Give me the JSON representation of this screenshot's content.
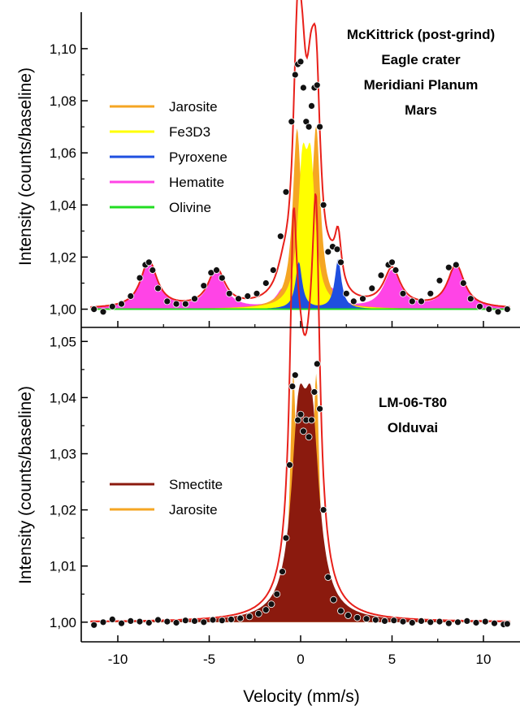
{
  "chart_data": [
    {
      "type": "area",
      "panel": "top",
      "title": "",
      "annotation": [
        "McKittrick (post-grind)",
        "Eagle crater",
        "Meridiani Planum",
        "Mars"
      ],
      "xlabel": "",
      "ylabel": "Intensity (counts/baseline)",
      "xlim": [
        -12,
        12
      ],
      "ylim": [
        0.993,
        1.114
      ],
      "xticks": [
        -10,
        -5,
        0,
        5,
        10
      ],
      "yticks": [
        1.0,
        1.02,
        1.04,
        1.06,
        1.08,
        1.1
      ],
      "ytick_labels": [
        "1,00",
        "1,02",
        "1,04",
        "1,06",
        "1,08",
        "1,10"
      ],
      "grid": false,
      "legend_position": "upper-left",
      "legend": [
        {
          "name": "Jarosite",
          "color": "#f5a623"
        },
        {
          "name": "Fe3D3",
          "color": "#ffff00"
        },
        {
          "name": "Pyroxene",
          "color": "#1f4fe0"
        },
        {
          "name": "Hematite",
          "color": "#ff44e6"
        },
        {
          "name": "Olivine",
          "color": "#22dd22"
        }
      ],
      "components": [
        {
          "name": "Hematite",
          "color": "#ff44e6",
          "peaks": [
            [
              -8.3,
              0.018,
              0.55
            ],
            [
              -4.6,
              0.0145,
              0.55
            ],
            [
              -0.95,
              0.0075,
              0.45
            ],
            [
              1.65,
              0.0075,
              0.45
            ],
            [
              5.0,
              0.0145,
              0.55
            ],
            [
              8.5,
              0.0165,
              0.55
            ]
          ]
        },
        {
          "name": "Jarosite",
          "color": "#f5a623",
          "peaks": [
            [
              -0.2,
              0.065,
              0.28
            ],
            [
              0.85,
              0.066,
              0.28
            ]
          ]
        },
        {
          "name": "Fe3D3",
          "color": "#ffff00",
          "peaks": [
            [
              0.1,
              0.048,
              0.3
            ],
            [
              0.55,
              0.048,
              0.3
            ]
          ]
        },
        {
          "name": "Pyroxene",
          "color": "#1f4fe0",
          "peaks": [
            [
              -0.1,
              0.018,
              0.22
            ],
            [
              2.05,
              0.019,
              0.22
            ]
          ]
        },
        {
          "name": "Olivine",
          "color": "#22dd22",
          "peaks": []
        }
      ],
      "data_points_x": [
        -11.3,
        -10.8,
        -10.3,
        -9.8,
        -9.3,
        -8.8,
        -8.5,
        -8.3,
        -8.1,
        -7.8,
        -7.3,
        -6.8,
        -6.3,
        -5.8,
        -5.3,
        -4.9,
        -4.6,
        -4.3,
        -3.9,
        -3.4,
        -2.9,
        -2.4,
        -1.9,
        -1.5,
        -1.1,
        -0.8,
        -0.5,
        -0.3,
        -0.15,
        0.0,
        0.15,
        0.3,
        0.45,
        0.6,
        0.75,
        0.9,
        1.05,
        1.25,
        1.5,
        1.75,
        2.0,
        2.2,
        2.5,
        2.9,
        3.4,
        3.9,
        4.4,
        4.8,
        5.0,
        5.2,
        5.6,
        6.1,
        6.6,
        7.1,
        7.6,
        8.1,
        8.5,
        8.9,
        9.3,
        9.8,
        10.3,
        10.8,
        11.3
      ],
      "data_points_y": [
        1.0,
        0.999,
        1.001,
        1.002,
        1.005,
        1.012,
        1.017,
        1.018,
        1.015,
        1.008,
        1.003,
        1.002,
        1.002,
        1.004,
        1.009,
        1.014,
        1.015,
        1.012,
        1.006,
        1.004,
        1.005,
        1.006,
        1.01,
        1.015,
        1.028,
        1.045,
        1.072,
        1.09,
        1.094,
        1.095,
        1.085,
        1.072,
        1.07,
        1.078,
        1.085,
        1.086,
        1.07,
        1.04,
        1.022,
        1.024,
        1.023,
        1.018,
        1.006,
        1.003,
        1.004,
        1.008,
        1.013,
        1.017,
        1.018,
        1.015,
        1.006,
        1.003,
        1.003,
        1.006,
        1.011,
        1.016,
        1.017,
        1.01,
        1.004,
        1.001,
        1.0,
        0.999,
        1.0
      ]
    },
    {
      "type": "area",
      "panel": "bottom",
      "title": "",
      "annotation": [
        "LM-06-T80",
        "Olduvai"
      ],
      "xlabel": "Velocity (mm/s)",
      "ylabel": "Intensity (counts/baseline)",
      "xlim": [
        -12,
        12
      ],
      "ylim": [
        0.9965,
        1.0525
      ],
      "xticks": [
        -10,
        -5,
        0,
        5,
        10
      ],
      "xtick_labels": [
        "-10",
        "-5",
        "0",
        "5",
        "10"
      ],
      "yticks": [
        1.0,
        1.01,
        1.02,
        1.03,
        1.04,
        1.05
      ],
      "ytick_labels": [
        "1,00",
        "1,01",
        "1,02",
        "1,03",
        "1,04",
        "1,05"
      ],
      "grid": false,
      "legend_position": "middle-left",
      "legend": [
        {
          "name": "Smectite",
          "color": "#8b1a0e"
        },
        {
          "name": "Jarosite",
          "color": "#f5a623"
        }
      ],
      "components": [
        {
          "name": "Jarosite",
          "color": "#f5a623",
          "peaks": [
            [
              -0.4,
              0.043,
              0.22
            ],
            [
              0.85,
              0.043,
              0.22
            ]
          ]
        },
        {
          "name": "Smectite",
          "color": "#8b1a0e",
          "peaks": [
            [
              -0.1,
              0.031,
              0.5
            ],
            [
              0.6,
              0.031,
              0.5
            ]
          ]
        }
      ],
      "data_points_x": [
        -11.3,
        -10.8,
        -10.3,
        -9.8,
        -9.3,
        -8.8,
        -8.3,
        -7.8,
        -7.3,
        -6.8,
        -6.3,
        -5.8,
        -5.3,
        -4.8,
        -4.3,
        -3.8,
        -3.3,
        -2.8,
        -2.3,
        -1.9,
        -1.6,
        -1.3,
        -1.0,
        -0.8,
        -0.6,
        -0.45,
        -0.3,
        -0.15,
        0.0,
        0.15,
        0.3,
        0.45,
        0.6,
        0.75,
        0.9,
        1.05,
        1.25,
        1.5,
        1.8,
        2.2,
        2.6,
        3.1,
        3.6,
        4.1,
        4.6,
        5.1,
        5.6,
        6.1,
        6.6,
        7.1,
        7.6,
        8.1,
        8.6,
        9.1,
        9.6,
        10.1,
        10.6,
        11.1,
        11.3
      ],
      "data_points_y": [
        0.9995,
        1.0,
        1.0005,
        0.9998,
        1.0002,
        1.0001,
        0.9999,
        1.0004,
        1.0001,
        0.9999,
        1.0003,
        1.0002,
        1.0,
        1.0004,
        1.0003,
        1.0005,
        1.0007,
        1.001,
        1.0015,
        1.0022,
        1.0032,
        1.005,
        1.009,
        1.015,
        1.028,
        1.042,
        1.044,
        1.036,
        1.037,
        1.034,
        1.036,
        1.033,
        1.036,
        1.041,
        1.046,
        1.038,
        1.02,
        1.008,
        1.004,
        1.002,
        1.0012,
        1.0008,
        1.0006,
        1.0004,
        1.0002,
        1.0003,
        1.0001,
        0.9999,
        1.0002,
        1.0,
        1.0001,
        0.9998,
        1.0,
        1.0002,
        0.9999,
        1.0001,
        0.9998,
        0.9996,
        0.9997
      ]
    }
  ]
}
